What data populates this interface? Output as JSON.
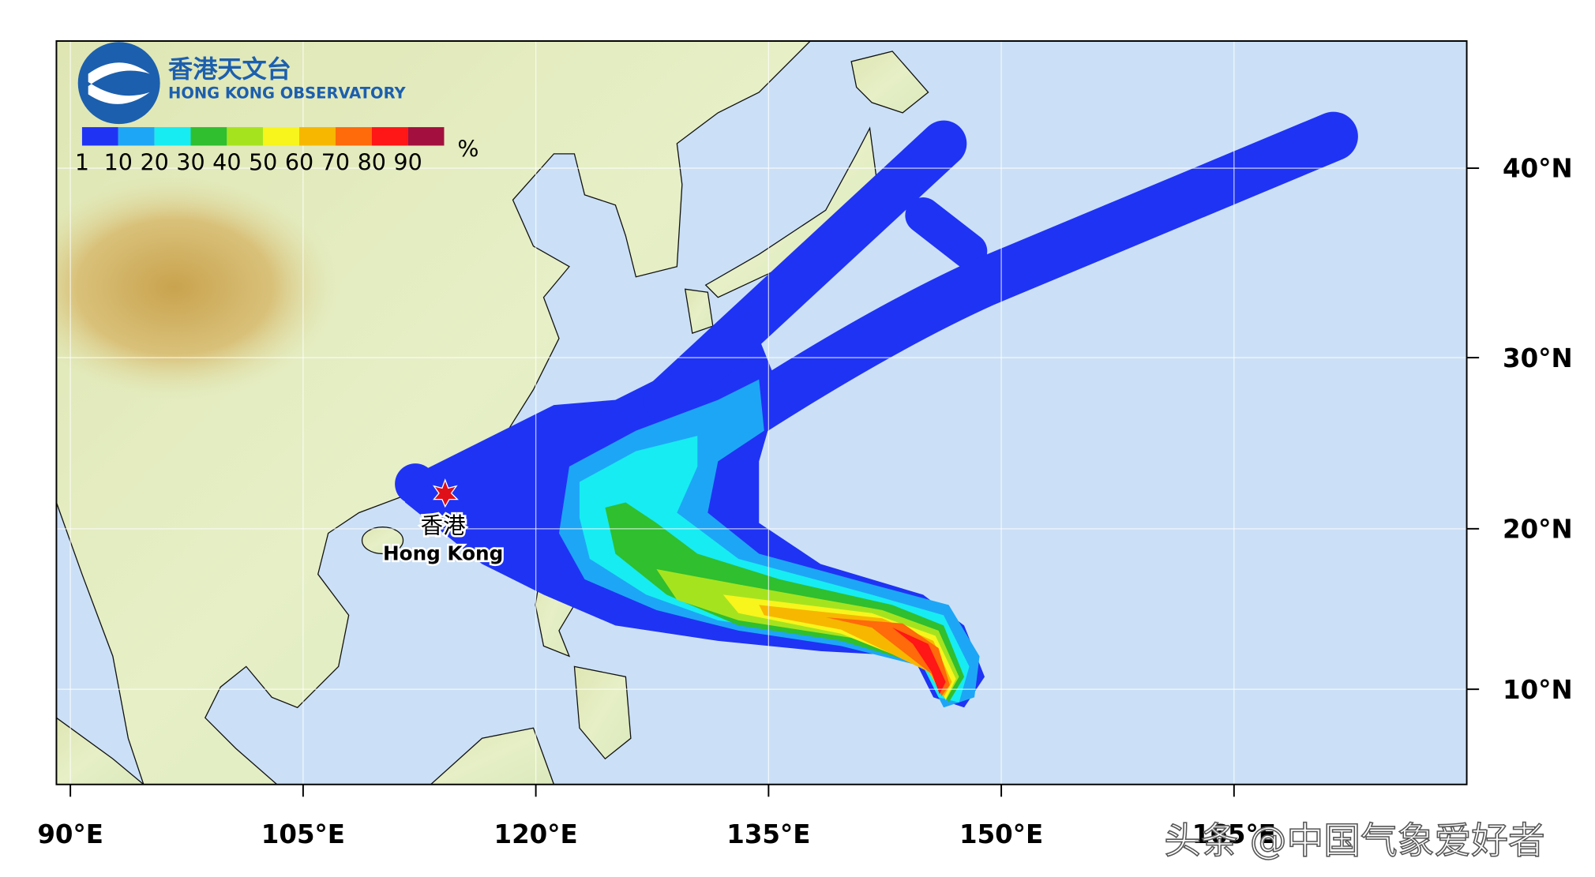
{
  "header": {
    "org_zh": "香港天文台",
    "org_en": "HONG KONG OBSERVATORY"
  },
  "legend": {
    "levels": [
      1,
      10,
      20,
      30,
      40,
      50,
      60,
      70,
      80,
      90
    ],
    "colors": [
      "#1f33f5",
      "#1ea6f6",
      "#17ecf2",
      "#2fbf2f",
      "#a6e31f",
      "#f7f51c",
      "#f7b700",
      "#ff6a0a",
      "#ff1616",
      "#a3103f"
    ],
    "unit": "%"
  },
  "map": {
    "xlim": [
      89.1,
      180
    ],
    "ylim": [
      3.9,
      46
    ],
    "xticks": [
      {
        "value": 90,
        "label": "90°E"
      },
      {
        "value": 105,
        "label": "105°E"
      },
      {
        "value": 120,
        "label": "120°E"
      },
      {
        "value": 135,
        "label": "135°E"
      },
      {
        "value": 150,
        "label": "150°E"
      },
      {
        "value": 165,
        "label": "165°E"
      }
    ],
    "yticks": [
      {
        "value": 10,
        "label": "10°N"
      },
      {
        "value": 20,
        "label": "20°N"
      },
      {
        "value": 30,
        "label": "30°N"
      },
      {
        "value": 40,
        "label": "40°N"
      }
    ],
    "grid": true
  },
  "place": {
    "name_zh": "香港",
    "name_en": "Hong Kong"
  },
  "watermark": "头条 @中国气象爱好者"
}
